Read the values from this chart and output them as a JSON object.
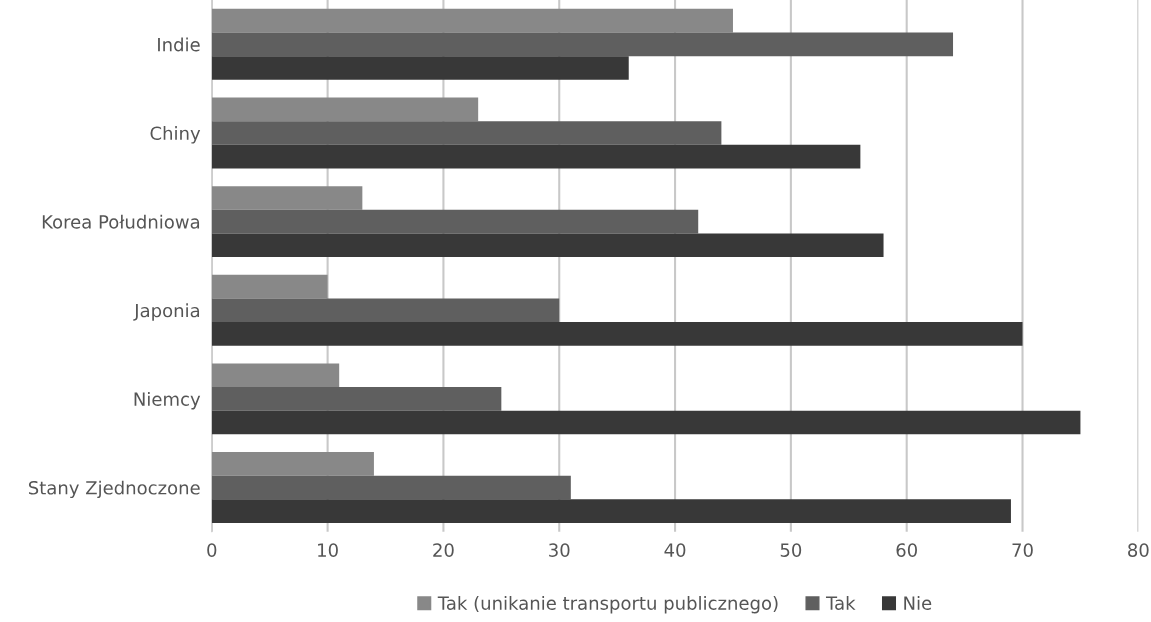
{
  "chart_data": {
    "type": "bar",
    "orientation": "horizontal",
    "categories": [
      "Indie",
      "Chiny",
      "Korea Południowa",
      "Japonia",
      "Niemcy",
      "Stany Zjednoczone"
    ],
    "series": [
      {
        "name": "Tak (unikanie transportu publicznego)",
        "color": "#888888",
        "values": [
          45,
          23,
          13,
          10,
          11,
          14
        ]
      },
      {
        "name": "Tak",
        "color": "#5f5f5f",
        "values": [
          64,
          44,
          42,
          30,
          25,
          31
        ]
      },
      {
        "name": "Nie",
        "color": "#383838",
        "values": [
          36,
          56,
          58,
          70,
          75,
          69
        ]
      }
    ],
    "xlim": [
      0,
      80
    ],
    "xticks": [
      0,
      10,
      20,
      30,
      40,
      50,
      60,
      70,
      80
    ],
    "grid": "x",
    "legend": "bottom"
  }
}
